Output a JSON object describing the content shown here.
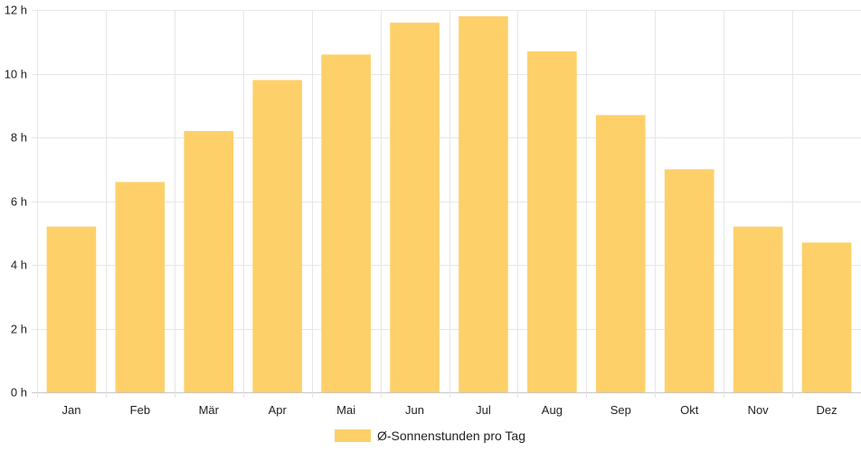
{
  "chart_data": {
    "type": "bar",
    "categories": [
      "Jan",
      "Feb",
      "Mär",
      "Apr",
      "Mai",
      "Jun",
      "Jul",
      "Aug",
      "Sep",
      "Okt",
      "Nov",
      "Dez"
    ],
    "series": [
      {
        "name": "Ø-Sonnenstunden pro Tag",
        "values": [
          5.2,
          6.6,
          8.2,
          9.8,
          10.6,
          11.6,
          11.8,
          10.7,
          8.7,
          7.0,
          5.2,
          4.7
        ],
        "color": "#fdd069"
      }
    ],
    "y_axis": {
      "ticks": [
        0,
        2,
        4,
        6,
        8,
        10,
        12
      ],
      "tick_suffix": " h",
      "ylim": [
        0,
        12
      ]
    },
    "grid": true,
    "legend_position": "bottom-center",
    "title": "",
    "xlabel": "",
    "ylabel": ""
  }
}
